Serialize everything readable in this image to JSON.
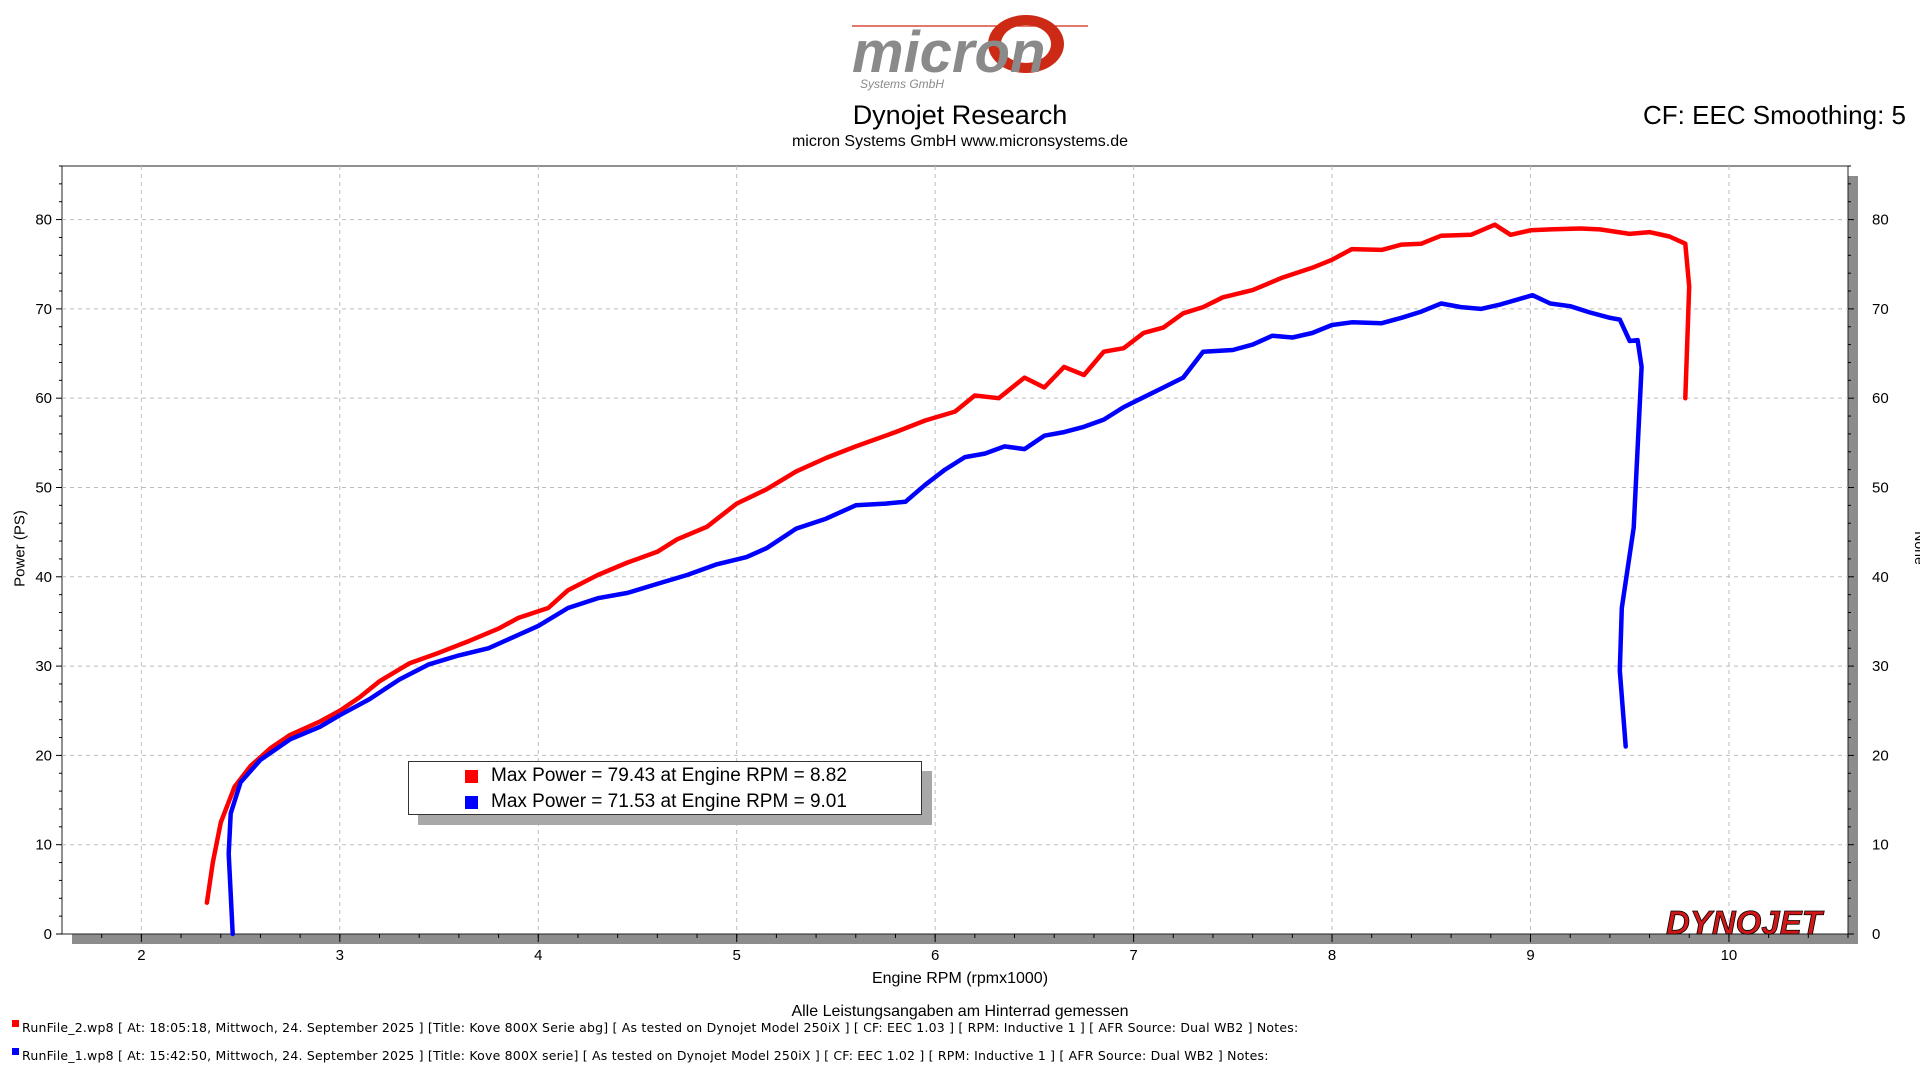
{
  "header": {
    "title": "Dynojet Research",
    "subtitle": "micron Systems GmbH  www.micronsystems.de",
    "cf_info": "CF: EEC Smoothing: 5"
  },
  "logo": {
    "text": "micron",
    "tagline": "Systems GmbH",
    "accent_color": "#cc2a14",
    "text_color": "#8a8a8a"
  },
  "brand": {
    "text": "DYNOJET",
    "color": "#d01818"
  },
  "footer": {
    "note": "Alle Leistungsangaben am Hinterrad gemessen",
    "runs": [
      {
        "color": "#ff0000",
        "text": "RunFile_2.wp8 [ At: 18:05:18, Mittwoch, 24. September 2025 ] [Title: Kove 800X Serie abg] [ As tested on Dynojet Model 250iX ] [ CF: EEC 1.03 ] [ RPM: Inductive 1 ] [ AFR Source: Dual WB2 ] Notes:"
      },
      {
        "color": "#0000ff",
        "text": "RunFile_1.wp8 [ At: 15:42:50, Mittwoch, 24. September 2025 ] [Title: Kove 800X serie] [ As tested on Dynojet Model 250iX ] [ CF: EEC 1.02 ] [ RPM: Inductive 1 ] [ AFR Source: Dual WB2 ] Notes:"
      }
    ]
  },
  "chart_data": {
    "type": "line",
    "xlabel": "Engine RPM (rpmx1000)",
    "ylabel": "Power (PS)",
    "ylabel_right": "None",
    "xlim": [
      1.6,
      10.6
    ],
    "ylim": [
      0,
      86
    ],
    "x_ticks": [
      2,
      3,
      4,
      5,
      6,
      7,
      8,
      9,
      10
    ],
    "y_ticks": [
      0,
      10,
      20,
      30,
      40,
      50,
      60,
      70,
      80
    ],
    "grid": true,
    "legend": {
      "placement": "lower-left",
      "entries": [
        {
          "color": "#ff0000",
          "label": "Max Power = 79.43 at Engine RPM = 8.82"
        },
        {
          "color": "#0000ff",
          "label": "Max Power = 71.53 at Engine RPM = 9.01"
        }
      ]
    },
    "series": [
      {
        "color": "#ff0000",
        "points": [
          [
            2.33,
            3.5
          ],
          [
            2.36,
            8
          ],
          [
            2.4,
            12.5
          ],
          [
            2.47,
            16.5
          ],
          [
            2.55,
            18.8
          ],
          [
            2.65,
            20.8
          ],
          [
            2.75,
            22.3
          ],
          [
            2.9,
            23.8
          ],
          [
            3.0,
            25.0
          ],
          [
            3.1,
            26.5
          ],
          [
            3.2,
            28.3
          ],
          [
            3.35,
            30.3
          ],
          [
            3.5,
            31.5
          ],
          [
            3.65,
            32.8
          ],
          [
            3.8,
            34.2
          ],
          [
            3.9,
            35.4
          ],
          [
            4.05,
            36.5
          ],
          [
            4.15,
            38.5
          ],
          [
            4.3,
            40.2
          ],
          [
            4.45,
            41.6
          ],
          [
            4.6,
            42.8
          ],
          [
            4.7,
            44.2
          ],
          [
            4.85,
            45.6
          ],
          [
            5.0,
            48.2
          ],
          [
            5.15,
            49.8
          ],
          [
            5.3,
            51.8
          ],
          [
            5.45,
            53.3
          ],
          [
            5.6,
            54.6
          ],
          [
            5.8,
            56.2
          ],
          [
            5.95,
            57.5
          ],
          [
            6.1,
            58.5
          ],
          [
            6.2,
            60.3
          ],
          [
            6.32,
            60.0
          ],
          [
            6.45,
            62.3
          ],
          [
            6.55,
            61.2
          ],
          [
            6.65,
            63.5
          ],
          [
            6.75,
            62.6
          ],
          [
            6.85,
            65.2
          ],
          [
            6.95,
            65.6
          ],
          [
            7.05,
            67.3
          ],
          [
            7.15,
            67.9
          ],
          [
            7.25,
            69.5
          ],
          [
            7.35,
            70.2
          ],
          [
            7.45,
            71.3
          ],
          [
            7.6,
            72.1
          ],
          [
            7.75,
            73.5
          ],
          [
            7.9,
            74.6
          ],
          [
            8.0,
            75.5
          ],
          [
            8.1,
            76.7
          ],
          [
            8.25,
            76.6
          ],
          [
            8.35,
            77.2
          ],
          [
            8.45,
            77.3
          ],
          [
            8.55,
            78.2
          ],
          [
            8.7,
            78.3
          ],
          [
            8.82,
            79.43
          ],
          [
            8.9,
            78.3
          ],
          [
            9.0,
            78.8
          ],
          [
            9.1,
            78.9
          ],
          [
            9.25,
            79.0
          ],
          [
            9.35,
            78.9
          ],
          [
            9.5,
            78.4
          ],
          [
            9.6,
            78.6
          ],
          [
            9.7,
            78.1
          ],
          [
            9.78,
            77.3
          ],
          [
            9.8,
            72.5
          ],
          [
            9.78,
            60.0
          ]
        ]
      },
      {
        "color": "#0000ff",
        "points": [
          [
            2.46,
            0
          ],
          [
            2.44,
            9
          ],
          [
            2.45,
            13.5
          ],
          [
            2.5,
            17
          ],
          [
            2.6,
            19.5
          ],
          [
            2.75,
            21.8
          ],
          [
            2.9,
            23.2
          ],
          [
            3.0,
            24.5
          ],
          [
            3.15,
            26.3
          ],
          [
            3.3,
            28.5
          ],
          [
            3.45,
            30.2
          ],
          [
            3.6,
            31.2
          ],
          [
            3.75,
            32.0
          ],
          [
            3.85,
            33.0
          ],
          [
            4.0,
            34.5
          ],
          [
            4.15,
            36.5
          ],
          [
            4.3,
            37.6
          ],
          [
            4.45,
            38.2
          ],
          [
            4.6,
            39.2
          ],
          [
            4.75,
            40.2
          ],
          [
            4.9,
            41.4
          ],
          [
            5.05,
            42.2
          ],
          [
            5.15,
            43.2
          ],
          [
            5.3,
            45.4
          ],
          [
            5.45,
            46.5
          ],
          [
            5.6,
            48.0
          ],
          [
            5.75,
            48.2
          ],
          [
            5.85,
            48.4
          ],
          [
            5.95,
            50.3
          ],
          [
            6.05,
            52.0
          ],
          [
            6.15,
            53.4
          ],
          [
            6.25,
            53.8
          ],
          [
            6.35,
            54.6
          ],
          [
            6.45,
            54.3
          ],
          [
            6.55,
            55.8
          ],
          [
            6.65,
            56.2
          ],
          [
            6.75,
            56.8
          ],
          [
            6.85,
            57.6
          ],
          [
            6.95,
            59.0
          ],
          [
            7.05,
            60.1
          ],
          [
            7.15,
            61.2
          ],
          [
            7.25,
            62.3
          ],
          [
            7.35,
            65.2
          ],
          [
            7.5,
            65.4
          ],
          [
            7.6,
            66.0
          ],
          [
            7.7,
            67.0
          ],
          [
            7.8,
            66.8
          ],
          [
            7.9,
            67.3
          ],
          [
            8.0,
            68.2
          ],
          [
            8.1,
            68.5
          ],
          [
            8.25,
            68.4
          ],
          [
            8.35,
            69.0
          ],
          [
            8.45,
            69.7
          ],
          [
            8.55,
            70.6
          ],
          [
            8.65,
            70.2
          ],
          [
            8.75,
            70.0
          ],
          [
            8.85,
            70.5
          ],
          [
            9.01,
            71.53
          ],
          [
            9.1,
            70.6
          ],
          [
            9.2,
            70.3
          ],
          [
            9.3,
            69.6
          ],
          [
            9.4,
            69.0
          ],
          [
            9.45,
            68.8
          ],
          [
            9.5,
            66.4
          ],
          [
            9.54,
            66.5
          ],
          [
            9.56,
            63.5
          ],
          [
            9.52,
            45.5
          ],
          [
            9.46,
            36.5
          ],
          [
            9.45,
            29.5
          ],
          [
            9.48,
            21.0
          ]
        ]
      }
    ]
  }
}
